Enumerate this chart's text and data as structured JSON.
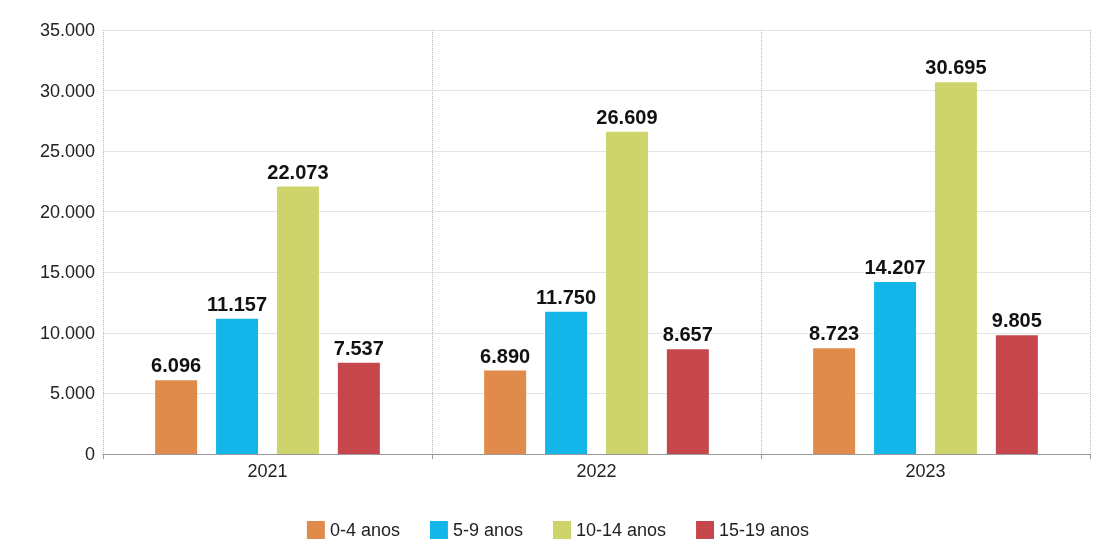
{
  "chart_data": {
    "type": "bar",
    "categories": [
      "2021",
      "2022",
      "2023"
    ],
    "series": [
      {
        "name": "0-4 anos",
        "color": "#e08b4b",
        "values": [
          6096,
          6890,
          8723
        ],
        "value_labels": [
          "6.096",
          "6.890",
          "8.723"
        ]
      },
      {
        "name": "5-9 anos",
        "color": "#14b6e9",
        "values": [
          11157,
          11750,
          14207
        ],
        "value_labels": [
          "11.157",
          "11.750",
          "14.207"
        ]
      },
      {
        "name": "10-14 anos",
        "color": "#cdd46b",
        "values": [
          22073,
          26609,
          30695
        ],
        "value_labels": [
          "22.073",
          "26.609",
          "30.695"
        ]
      },
      {
        "name": "15-19 anos",
        "color": "#c5474c",
        "values": [
          7537,
          8657,
          9805
        ],
        "value_labels": [
          "7.537",
          "8.657",
          "9.805"
        ]
      }
    ],
    "ylim": [
      0,
      35000
    ],
    "yticks": [
      {
        "value": 0,
        "label": "0"
      },
      {
        "value": 5000,
        "label": "5.000"
      },
      {
        "value": 10000,
        "label": "10.000"
      },
      {
        "value": 15000,
        "label": "15.000"
      },
      {
        "value": 20000,
        "label": "20.000"
      },
      {
        "value": 25000,
        "label": "25.000"
      },
      {
        "value": 30000,
        "label": "30.000"
      },
      {
        "value": 35000,
        "label": "35.000"
      }
    ],
    "grid": true,
    "legend": "bottom"
  }
}
